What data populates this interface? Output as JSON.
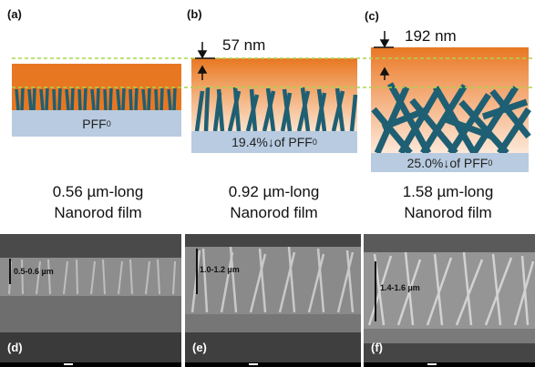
{
  "panels": [
    {
      "id": "a",
      "label": "(a)",
      "base_text": "PFF",
      "base_sub": "0",
      "caption_line1": "0.56 µm-long",
      "caption_line2": "Nanorod film"
    },
    {
      "id": "b",
      "label": "(b)",
      "dimension": "57 nm",
      "base_text": "19.4%↓of PFF",
      "base_sub": "0",
      "caption_line1": "0.92 µm-long",
      "caption_line2": "Nanorod film"
    },
    {
      "id": "c",
      "label": "(c)",
      "dimension": "192 nm",
      "base_text": "25.0%↓of PFF",
      "base_sub": "0",
      "caption_line1": "1.58 µm-long",
      "caption_line2": "Nanorod film"
    }
  ],
  "sem_images": [
    {
      "id": "d",
      "label": "(d)",
      "thickness": "0.5-0.6 µm"
    },
    {
      "id": "e",
      "label": "(e)",
      "thickness": "1.0-1.2 µm"
    },
    {
      "id": "f",
      "label": "(f)",
      "thickness": "1.4-1.6 µm"
    }
  ],
  "colors": {
    "capping": "#e87722",
    "base": "#b8cbe0",
    "nanorod": "#1e5f73",
    "guide": "#a8d64a"
  }
}
